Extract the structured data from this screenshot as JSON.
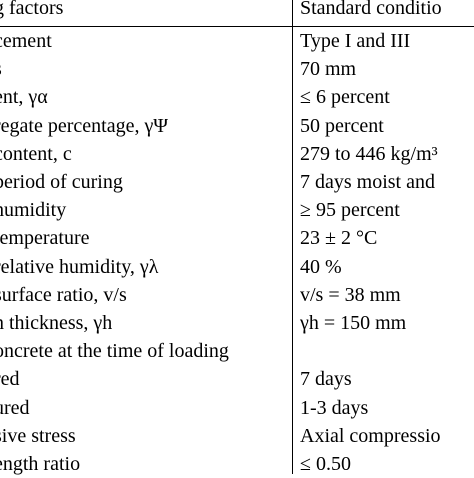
{
  "table": {
    "header": [
      "g factors",
      "Standard conditio"
    ],
    "rows": [
      [
        "cement",
        "Type I and III"
      ],
      [
        "s",
        "70 mm"
      ],
      [
        "ent, γα",
        "≤ 6 percent"
      ],
      [
        "regate percentage, γΨ",
        "50 percent"
      ],
      [
        "content, c",
        "279 to 446 kg/m³"
      ],
      [
        "period  of curing",
        "7 days moist and"
      ],
      [
        "humidity",
        "≥ 95 percent"
      ],
      [
        "temperature",
        "23 ± 2 °C"
      ],
      [
        "relative humidity, γλ",
        "40 %"
      ],
      [
        "surface ratio, v/s",
        "v/s = 38 mm"
      ],
      [
        "n thickness, γh",
        "γh = 150 mm"
      ],
      [
        "oncrete at the time of loading",
        ""
      ],
      [
        "red",
        "7 days"
      ],
      [
        "ured",
        "1-3 days"
      ],
      [
        "sive stress",
        "Axial compressio"
      ],
      [
        "ength ratio",
        "≤ 0.50"
      ]
    ]
  }
}
